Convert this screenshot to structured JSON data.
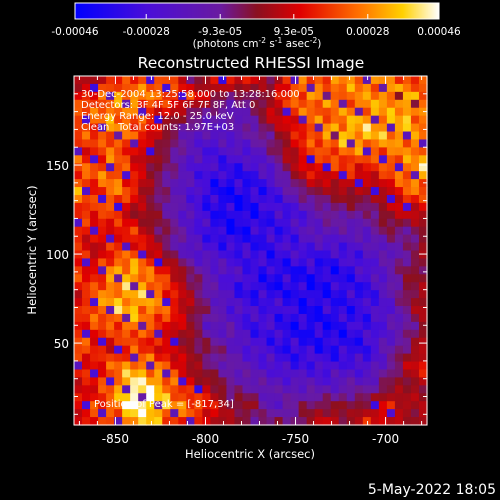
{
  "colorbar": {
    "tick_labels": [
      "-0.00046",
      "-0.00028",
      "-9.3e-05",
      "9.3e-05",
      "0.00028",
      "0.00046"
    ],
    "tick_values": [
      -0.00046,
      -0.00028,
      -9.3e-05,
      9.3e-05,
      0.00028,
      0.00046
    ],
    "range": [
      -0.00046,
      0.00046
    ],
    "unit_label_prefix": "(photons cm",
    "unit_sup1": "-2",
    "unit_mid1": " s",
    "unit_sup2": "-1",
    "unit_mid2": " asec",
    "unit_sup3": "-2",
    "unit_suffix": ")"
  },
  "info": {
    "line1": "30-Dec-2004 13:25:58.000 to 13:28:16.000",
    "line2": "Detectors: 3F 4F 5F 6F 7F 8F, Att 0",
    "line3": "Energy Range: 12.0 - 25.0 keV",
    "line4a": "Clean",
    "line4b": "Total counts: 1.97E+03",
    "peak": "Position of Peak = [-817,34]"
  },
  "footer": {
    "date": "5-May-2022 18:05"
  },
  "colors": {
    "background": "#000000",
    "frame": "#ffffff",
    "colormap_low": "#0000ff",
    "colormap_high": "#ffffff"
  },
  "chart_data": {
    "type": "heatmap",
    "title": "Reconstructed RHESSI Image",
    "xlabel": "Heliocentric X (arcsec)",
    "ylabel": "Heliocentric Y (arcsec)",
    "xlim": [
      -873,
      -677
    ],
    "ylim": [
      4,
      200
    ],
    "x_ticks": [
      -850,
      -800,
      -750,
      -700
    ],
    "x_tick_labels": [
      "-850",
      "-800",
      "-750",
      "-700"
    ],
    "y_ticks": [
      50,
      100,
      150
    ],
    "y_tick_labels": [
      "50",
      "100",
      "150"
    ],
    "peak_position": [
      -817,
      34
    ],
    "intensity_range": [
      -0.00046,
      0.00046
    ],
    "source_map": [
      [
        0.11,
        -0.09,
        0.43,
        0.19,
        0.47,
        0.38,
        -0.23,
        0.15,
        0.41,
        0.33,
        -0.11,
        0.45,
        0.45,
        0.47,
        0.58,
        0.63,
        0.5,
        0.4,
        0.25
      ],
      [
        0.25,
        0.4,
        0.52,
        0.7,
        0.5,
        0.43,
        0.35,
        0.12,
        -0.16,
        -0.06,
        0.02,
        0.45,
        0.58,
        0.61,
        0.54,
        0.57,
        0.68,
        0.74,
        0.54
      ],
      [
        0.48,
        0.44,
        0.66,
        0.47,
        0.31,
        0.1,
        -0.12,
        -0.25,
        -0.36,
        -0.3,
        0.17,
        0.32,
        0.52,
        0.48,
        0.58,
        0.66,
        0.6,
        0.73,
        0.51
      ],
      [
        0.38,
        0.43,
        0.57,
        0.53,
        0.24,
        -0.14,
        -0.33,
        -0.46,
        -0.38,
        -0.25,
        -0.13,
        0.15,
        0.46,
        0.68,
        0.77,
        0.74,
        0.66,
        0.64,
        0.44
      ],
      [
        0.5,
        0.25,
        0.53,
        0.26,
        0.07,
        -0.13,
        -0.43,
        -0.61,
        -0.53,
        -0.5,
        -0.24,
        0.13,
        0.34,
        0.41,
        0.55,
        0.43,
        0.49,
        0.55,
        0.63
      ],
      [
        0.44,
        0.48,
        0.55,
        0.29,
        0.0,
        -0.23,
        -0.52,
        -0.63,
        -0.76,
        -0.7,
        -0.49,
        -0.05,
        0.26,
        0.26,
        0.3,
        0.21,
        0.4,
        0.55,
        0.82
      ],
      [
        0.66,
        0.28,
        0.58,
        0.36,
        -0.05,
        -0.28,
        -0.49,
        -0.81,
        -0.87,
        -0.79,
        -0.69,
        -0.33,
        -0.05,
        0.0,
        0.09,
        0.09,
        0.14,
        0.48,
        0.42
      ],
      [
        0.41,
        0.38,
        0.38,
        0.03,
        0.01,
        -0.28,
        -0.53,
        -0.74,
        -0.84,
        -0.83,
        -0.68,
        -0.64,
        -0.44,
        -0.18,
        -0.16,
        -0.2,
        0.08,
        0.19,
        0.15
      ],
      [
        0.33,
        0.28,
        0.3,
        0.35,
        -0.01,
        -0.13,
        -0.44,
        -0.71,
        -0.92,
        -0.76,
        -0.71,
        -0.65,
        -0.4,
        -0.3,
        -0.38,
        -0.31,
        -0.07,
        -0.19,
        0.04
      ],
      [
        0.41,
        0.12,
        0.34,
        0.39,
        0.22,
        -0.25,
        -0.47,
        -0.59,
        -0.64,
        -0.74,
        -0.72,
        -0.6,
        -0.57,
        -0.65,
        -0.56,
        -0.49,
        -0.37,
        -0.22,
        0.1
      ],
      [
        0.44,
        0.27,
        0.63,
        0.73,
        0.38,
        0.25,
        -0.19,
        -0.36,
        -0.52,
        -0.62,
        -0.78,
        -0.8,
        -0.78,
        -0.81,
        -0.73,
        -0.52,
        -0.32,
        -0.06,
        -0.02
      ],
      [
        0.19,
        0.41,
        0.62,
        0.72,
        0.66,
        0.25,
        0.03,
        -0.37,
        -0.6,
        -0.79,
        -0.81,
        -0.78,
        -0.86,
        -0.78,
        -0.73,
        -0.72,
        -0.38,
        -0.03,
        0.03
      ],
      [
        0.22,
        0.47,
        0.71,
        0.73,
        0.56,
        0.38,
        0.03,
        -0.2,
        -0.5,
        -0.61,
        -0.58,
        -0.73,
        -0.84,
        -0.76,
        -0.75,
        -0.65,
        -0.49,
        -0.12,
        0.24
      ],
      [
        0.32,
        0.37,
        0.39,
        0.6,
        0.47,
        0.22,
        0.02,
        -0.46,
        -0.33,
        -0.69,
        -0.64,
        -0.81,
        -0.83,
        -0.84,
        -0.75,
        -0.65,
        -0.47,
        -0.26,
        0.02
      ],
      [
        0.56,
        0.28,
        0.22,
        0.36,
        0.31,
        0.14,
        -0.01,
        -0.06,
        -0.34,
        -0.55,
        -0.66,
        -0.75,
        -0.75,
        -0.78,
        -0.79,
        -0.68,
        -0.34,
        -0.08,
        0.2
      ],
      [
        0.36,
        0.28,
        0.47,
        0.68,
        0.57,
        0.39,
        0.07,
        -0.18,
        -0.28,
        -0.38,
        -0.51,
        -0.68,
        -0.58,
        -0.63,
        -0.53,
        -0.58,
        -0.24,
        0.1,
        0.33
      ],
      [
        0.22,
        0.25,
        0.47,
        0.9,
        0.83,
        0.51,
        0.18,
        0.11,
        -0.21,
        -0.26,
        -0.35,
        -0.36,
        -0.39,
        -0.43,
        -0.29,
        -0.32,
        -0.05,
        0.0,
        0.07
      ],
      [
        0.14,
        0.37,
        0.55,
        1.0,
        0.89,
        0.61,
        0.55,
        0.26,
        -0.02,
        0.06,
        -0.4,
        -0.23,
        -0.07,
        -0.02,
        -0.04,
        0.05,
        0.32,
        0.1,
        0.04
      ],
      [
        0.25,
        0.37,
        0.31,
        0.72,
        0.69,
        0.36,
        0.33,
        0.16,
        0.06,
        -0.19,
        -0.04,
        -0.15,
        0.03,
        0.26,
        -0.05,
        0.35,
        0.21,
        -0.05,
        0.18
      ]
    ]
  }
}
